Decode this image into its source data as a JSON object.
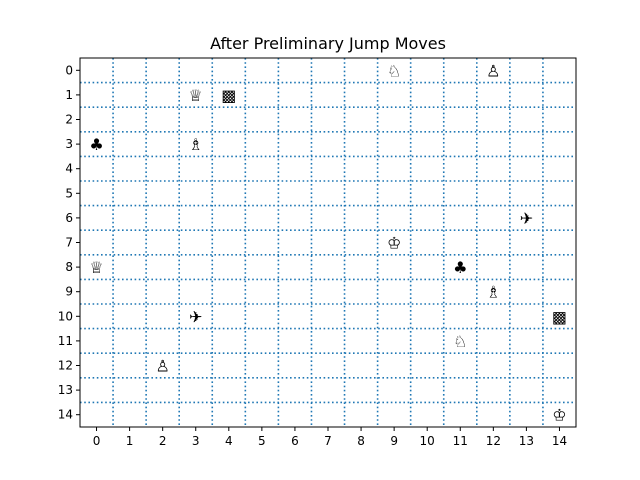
{
  "title": "After Preliminary Jump Moves",
  "board": {
    "columns": 15,
    "rows": 15,
    "x_tick_labels": [
      "0",
      "1",
      "2",
      "3",
      "4",
      "5",
      "6",
      "7",
      "8",
      "9",
      "10",
      "11",
      "12",
      "13",
      "14"
    ],
    "y_tick_labels": [
      "0",
      "1",
      "2",
      "3",
      "4",
      "5",
      "6",
      "7",
      "8",
      "9",
      "10",
      "11",
      "12",
      "13",
      "14"
    ],
    "grid_color": "#1f77b4",
    "grid_style": "dotted"
  },
  "pieces": [
    {
      "name": "white-knight",
      "glyph": "♘",
      "col": 9,
      "row": 0
    },
    {
      "name": "white-pawn",
      "glyph": "♙",
      "col": 12,
      "row": 0
    },
    {
      "name": "white-queen",
      "glyph": "♕",
      "col": 3,
      "row": 1
    },
    {
      "name": "checkered-block",
      "glyph": "▩",
      "col": 4,
      "row": 1
    },
    {
      "name": "club",
      "glyph": "♣",
      "col": 0,
      "row": 3
    },
    {
      "name": "white-bishop",
      "glyph": "♗",
      "col": 3,
      "row": 3
    },
    {
      "name": "airplane",
      "glyph": "✈",
      "col": 13,
      "row": 6
    },
    {
      "name": "white-king",
      "glyph": "♔",
      "col": 9,
      "row": 7
    },
    {
      "name": "white-queen",
      "glyph": "♕",
      "col": 0,
      "row": 8
    },
    {
      "name": "club",
      "glyph": "♣",
      "col": 11,
      "row": 8
    },
    {
      "name": "white-bishop",
      "glyph": "♗",
      "col": 12,
      "row": 9
    },
    {
      "name": "airplane",
      "glyph": "✈",
      "col": 3,
      "row": 10
    },
    {
      "name": "checkered-block",
      "glyph": "▩",
      "col": 14,
      "row": 10
    },
    {
      "name": "white-knight",
      "glyph": "♘",
      "col": 11,
      "row": 11
    },
    {
      "name": "white-pawn",
      "glyph": "♙",
      "col": 2,
      "row": 12
    },
    {
      "name": "white-king",
      "glyph": "♔",
      "col": 14,
      "row": 14
    }
  ]
}
